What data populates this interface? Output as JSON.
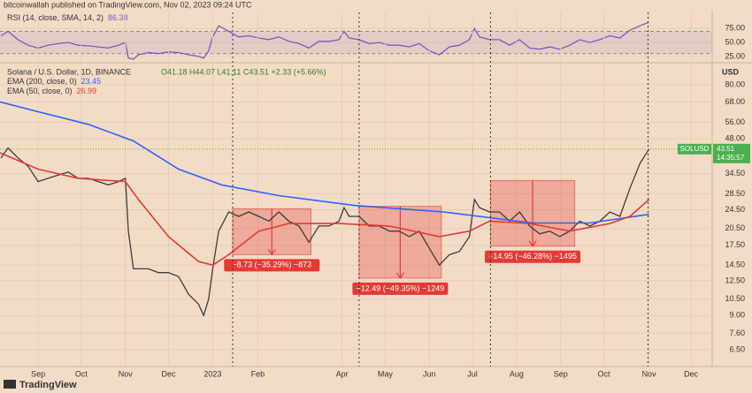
{
  "header": "bitcoinwallah published on TradingView.com, Nov 02, 2023 09:24 UTC",
  "footer": "TradingView",
  "chart_data": [
    {
      "type": "line",
      "title": "RSI (14, close, SMA, 14, 2)",
      "xlim": [
        -3.8,
        67.2
      ],
      "ylim": [
        15.3,
        104
      ],
      "yticks": [
        {
          "value": 75,
          "label": "75.00"
        },
        {
          "value": 50,
          "label": "50.00"
        },
        {
          "value": 25,
          "label": "25.00"
        }
      ],
      "band": [
        30,
        70
      ],
      "band_color": "#7e57c2",
      "series": [
        {
          "name": "RSI",
          "color": "#7e57c2",
          "legend_value": 86.38,
          "x": [
            -3.7,
            -3,
            -2,
            -1,
            0,
            1,
            2,
            3,
            4,
            5,
            6,
            7,
            8,
            8.7,
            9,
            9.5,
            10,
            11,
            12,
            13,
            14,
            15,
            16,
            16.5,
            17,
            17.4,
            18,
            19,
            20,
            21,
            22,
            23,
            24,
            25,
            26,
            27,
            28,
            29,
            30,
            30.5,
            31,
            32,
            33,
            34,
            35,
            36,
            37,
            38,
            39,
            40,
            41,
            42,
            43,
            43.5,
            44,
            45,
            46,
            47,
            48,
            49,
            50,
            51,
            52,
            53,
            54,
            55,
            56,
            57,
            58,
            59,
            60,
            60.9
          ],
          "values": [
            62,
            70,
            55,
            45,
            40,
            45,
            48,
            50,
            45,
            44,
            42,
            40,
            45,
            50,
            22,
            20,
            28,
            32,
            30,
            33,
            32,
            28,
            25,
            22,
            35,
            60,
            80,
            70,
            60,
            62,
            58,
            55,
            60,
            52,
            48,
            40,
            52,
            52,
            55,
            70,
            58,
            55,
            48,
            50,
            45,
            45,
            42,
            48,
            35,
            28,
            42,
            45,
            55,
            75,
            60,
            55,
            55,
            45,
            55,
            40,
            38,
            42,
            38,
            45,
            55,
            50,
            55,
            62,
            58,
            72,
            80,
            86.38
          ]
        }
      ]
    },
    {
      "type": "line",
      "title": "Solana / U.S. Dollar, 1D, BINANCE",
      "subtitle": "O41.18 H44.07 L41.11 C43.51 +2.33 (+5.66%)",
      "currency": "USD",
      "log_scale": true,
      "xlim": [
        -3.8,
        67.2
      ],
      "ylim": [
        5.55,
        97.8
      ],
      "xticks": [
        {
          "value": 0,
          "label": "Sep"
        },
        {
          "value": 4.3,
          "label": "Oct"
        },
        {
          "value": 8.7,
          "label": "Nov"
        },
        {
          "value": 13,
          "label": "Dec"
        },
        {
          "value": 17.4,
          "label": "2023"
        },
        {
          "value": 21.9,
          "label": "Feb"
        },
        {
          "value": 30.3,
          "label": "Apr"
        },
        {
          "value": 34.6,
          "label": "May"
        },
        {
          "value": 39.0,
          "label": "Jun"
        },
        {
          "value": 43.3,
          "label": "Jul"
        },
        {
          "value": 47.7,
          "label": "Aug"
        },
        {
          "value": 52.1,
          "label": "Sep"
        },
        {
          "value": 56.4,
          "label": "Oct"
        },
        {
          "value": 60.9,
          "label": "Nov"
        },
        {
          "value": 65.1,
          "label": "Dec"
        }
      ],
      "yticks": [
        {
          "value": 80,
          "label": "80.00"
        },
        {
          "value": 68,
          "label": "68.00"
        },
        {
          "value": 56,
          "label": "56.00"
        },
        {
          "value": 48,
          "label": "48.00"
        },
        {
          "value": 34.5,
          "label": "34.50"
        },
        {
          "value": 28.5,
          "label": "28.50"
        },
        {
          "value": 24.5,
          "label": "24.50"
        },
        {
          "value": 20.5,
          "label": "20.50"
        },
        {
          "value": 17.5,
          "label": "17.50"
        },
        {
          "value": 14.5,
          "label": "14.50"
        },
        {
          "value": 12.5,
          "label": "12.50"
        },
        {
          "value": 10.5,
          "label": "10.50"
        },
        {
          "value": 9,
          "label": "9.00"
        },
        {
          "value": 7.6,
          "label": "7.60"
        },
        {
          "value": 6.5,
          "label": "6.50"
        }
      ],
      "price_badge": {
        "symbol": "SOLUSD",
        "price": 43.51,
        "countdown": "14:35:57",
        "color": "#4caf50"
      },
      "vlines": [
        19.4,
        32.0,
        45.1,
        60.8
      ],
      "annotations": [
        {
          "label": "−8.73 (−35.29%) −873",
          "x": [
            19.4,
            27.2
          ],
          "y": [
            24.74,
            16.01
          ]
        },
        {
          "label": "−12.49 (−49.35%) −1249",
          "x": [
            32.0,
            40.2
          ],
          "y": [
            25.31,
            12.82
          ]
        },
        {
          "label": "−14.95 (−46.28%) −1495",
          "x": [
            45.1,
            53.5
          ],
          "y": [
            32.3,
            17.35
          ]
        }
      ],
      "annotation_color": "#e53935",
      "series": [
        {
          "name": "SOLUSD",
          "color": "#3b3b3b",
          "x": [
            -3.7,
            -3,
            -2,
            -1,
            0,
            1,
            2,
            3,
            4,
            5,
            6,
            7,
            8,
            8.7,
            9,
            9.5,
            10,
            11,
            12,
            13,
            14,
            15,
            16,
            16.5,
            17,
            17.4,
            18,
            19,
            20,
            21,
            22,
            23,
            24,
            25,
            26,
            27,
            28,
            29,
            30,
            30.5,
            31,
            32,
            33,
            34,
            35,
            36,
            37,
            38,
            39,
            40,
            41,
            42,
            43,
            43.5,
            44,
            45,
            46,
            47,
            48,
            49,
            50,
            51,
            52,
            53,
            54,
            55,
            56,
            57,
            58,
            59,
            60,
            60.9
          ],
          "values": [
            40,
            44,
            40,
            37,
            32,
            33,
            34,
            35,
            33,
            33,
            32,
            31,
            32,
            33,
            20,
            14,
            14,
            14,
            13.5,
            13.5,
            13,
            11,
            10,
            9,
            10.5,
            14,
            20,
            24,
            23,
            24,
            23,
            22,
            24,
            22,
            21,
            18,
            21,
            21,
            22,
            25,
            23,
            23,
            21,
            21,
            20,
            20,
            19,
            20,
            17,
            14.5,
            16,
            16.5,
            19,
            27,
            25,
            24,
            24,
            22,
            24,
            21,
            19.5,
            20,
            19,
            20,
            22,
            21,
            22,
            24,
            23,
            30,
            38,
            43.51
          ]
        },
        {
          "name": "EMA (200, close, 0)",
          "color": "#2962ff",
          "legend_value": 23.45,
          "x": [
            -3.8,
            0,
            5,
            9.5,
            14,
            18.3,
            24,
            31.6,
            40.4,
            49.3,
            55,
            60.9
          ],
          "values": [
            68,
            62,
            55,
            47,
            36,
            31,
            28,
            25.5,
            24,
            21.6,
            21.6,
            23.45
          ]
        },
        {
          "name": "EMA (50, close, 0)",
          "color": "#e53935",
          "legend_value": 26.99,
          "x": [
            -3.8,
            0,
            4,
            8.7,
            10,
            13,
            16,
            17.4,
            19,
            22,
            25,
            30,
            35,
            40,
            43,
            45,
            49,
            53,
            57,
            59,
            60.9
          ],
          "values": [
            42,
            36,
            33,
            32,
            27,
            19,
            15,
            14.5,
            16,
            20,
            21.5,
            21.5,
            21,
            19,
            20,
            22,
            21.5,
            20,
            21.5,
            23,
            26.99
          ]
        }
      ]
    }
  ]
}
